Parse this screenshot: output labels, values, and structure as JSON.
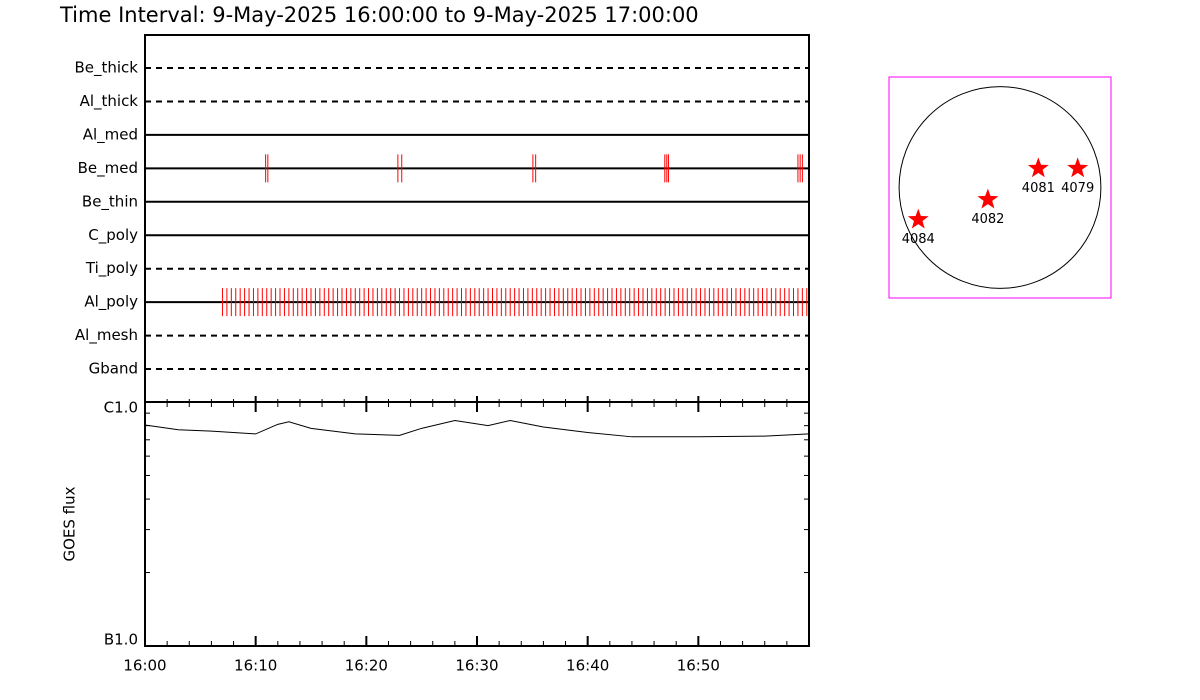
{
  "chart_data": [
    {
      "type": "timeline",
      "title": "Time Interval:  9-May-2025 16:00:00 to  9-May-2025 17:00:00",
      "xlim": [
        0,
        60
      ],
      "color": "#ff0000",
      "rows": [
        {
          "name": "Be_thick",
          "dashed": true,
          "events": []
        },
        {
          "name": "Al_thick",
          "dashed": true,
          "events": []
        },
        {
          "name": "Al_med",
          "dashed": false,
          "events": []
        },
        {
          "name": "Be_med",
          "dashed": false,
          "events": [
            10.9,
            11.1,
            22.85,
            23.2,
            35.05,
            35.3,
            46.97,
            47.15,
            47.3,
            59.0,
            59.2,
            59.4
          ]
        },
        {
          "name": "Be_thin",
          "dashed": false,
          "events": []
        },
        {
          "name": "C_poly",
          "dashed": false,
          "events": []
        },
        {
          "name": "Ti_poly",
          "dashed": true,
          "events": []
        },
        {
          "name": "Al_poly",
          "dashed": false,
          "events": [
            7,
            7.4,
            7.8,
            8.2,
            8.6,
            9,
            9.4,
            9.8,
            10.2,
            10.6,
            11,
            11.4,
            11.8,
            12.2,
            12.6,
            13,
            13.4,
            13.8,
            14.2,
            14.6,
            15,
            15.4,
            15.8,
            16.2,
            16.6,
            17,
            17.4,
            17.8,
            18.2,
            18.6,
            19,
            19.4,
            19.8,
            20.2,
            20.6,
            21,
            21.4,
            21.8,
            22.2,
            22.6,
            23,
            23.4,
            23.8,
            24.2,
            24.6,
            25,
            25.4,
            25.8,
            26.2,
            26.6,
            27,
            27.4,
            27.8,
            28.2,
            28.6,
            29,
            29.4,
            29.8,
            30.2,
            30.6,
            31,
            31.4,
            31.8,
            32.2,
            32.6,
            33,
            33.4,
            33.8,
            34.2,
            34.6,
            35,
            35.4,
            35.8,
            36.2,
            36.6,
            37,
            37.4,
            37.8,
            38.2,
            38.6,
            39,
            39.4,
            39.8,
            40.2,
            40.6,
            41,
            41.4,
            41.8,
            42.2,
            42.6,
            43,
            43.4,
            43.8,
            44.2,
            44.6,
            45,
            45.4,
            45.8,
            46.2,
            46.6,
            47,
            47.4,
            47.8,
            48.2,
            48.6,
            49,
            49.4,
            49.8,
            50.2,
            50.6,
            51,
            51.4,
            51.8,
            52.2,
            52.6,
            53,
            53.4,
            53.8,
            54.2,
            54.6,
            55,
            55.4,
            55.8,
            56.2,
            56.6,
            57,
            57.4,
            57.8,
            58.2,
            58.6,
            59,
            59.4,
            59.8
          ]
        },
        {
          "name": "Al_mesh",
          "dashed": true,
          "events": []
        },
        {
          "name": "Gband",
          "dashed": true,
          "events": []
        }
      ]
    },
    {
      "type": "line",
      "ylabel": "GOES flux",
      "log_y": true,
      "color": "#000000",
      "xlim": [
        0,
        60
      ],
      "xticks": [
        {
          "value": 0,
          "label": "16:00"
        },
        {
          "value": 10,
          "label": "16:10"
        },
        {
          "value": 20,
          "label": "16:20"
        },
        {
          "value": 30,
          "label": "16:30"
        },
        {
          "value": 40,
          "label": "16:40"
        },
        {
          "value": 50,
          "label": "16:50"
        }
      ],
      "xminorticks": [
        2,
        4,
        6,
        8,
        12,
        14,
        16,
        18,
        22,
        24,
        26,
        28,
        32,
        34,
        36,
        38,
        42,
        44,
        46,
        48,
        52,
        54,
        56,
        58
      ],
      "ylim": [
        1e-07,
        1e-06
      ],
      "yticks": [
        {
          "value": 1e-07,
          "label": "B1.0"
        },
        {
          "value": 1e-06,
          "label": "C1.0"
        }
      ],
      "yminorticks": [
        2e-07,
        3e-07,
        4e-07,
        5e-07,
        6e-07,
        7e-07,
        8e-07,
        9e-07
      ],
      "x": [
        0,
        3,
        6,
        10,
        12,
        13,
        15,
        19,
        23,
        25,
        28,
        31,
        33,
        36,
        40,
        44,
        50,
        56,
        60
      ],
      "values": [
        8.05e-07,
        7.7e-07,
        7.6e-07,
        7.4e-07,
        8.1e-07,
        8.3e-07,
        7.8e-07,
        7.4e-07,
        7.3e-07,
        7.8e-07,
        8.4e-07,
        8e-07,
        8.4e-07,
        7.9e-07,
        7.5e-07,
        7.2e-07,
        7.2e-07,
        7.25e-07,
        7.4e-07
      ]
    },
    {
      "type": "scatter",
      "color": "#ff0000",
      "frame_color": "#ff00ff",
      "xlim": [
        -1.1,
        1.1
      ],
      "ylim": [
        -1.1,
        1.1
      ],
      "disk_radius": 1,
      "labels": [
        "4084",
        "4082",
        "4081",
        "4079"
      ],
      "x": [
        -0.81,
        -0.12,
        0.38,
        0.77
      ],
      "values": [
        -0.32,
        -0.12,
        0.19,
        0.19
      ]
    }
  ]
}
